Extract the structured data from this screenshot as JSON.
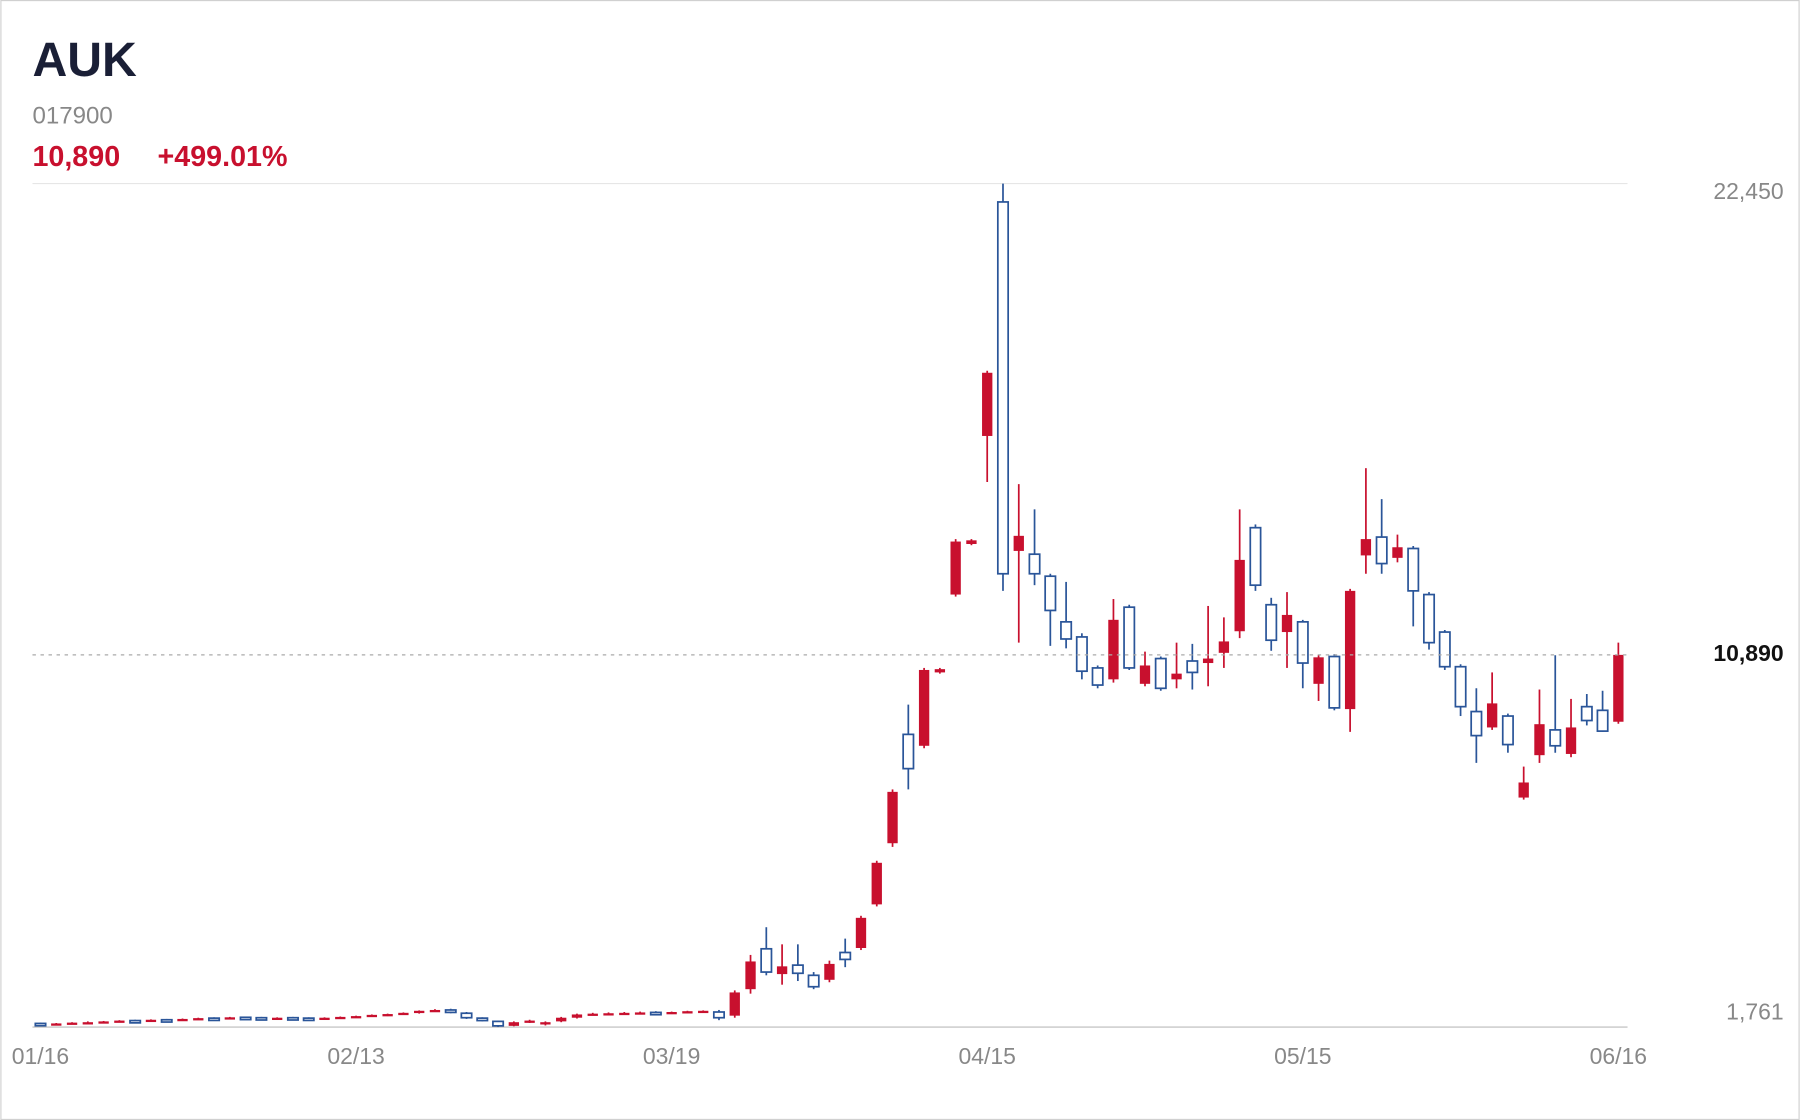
{
  "chart_data": {
    "type": "candlestick",
    "title": "AUK",
    "subtitle": "017900",
    "price": "10,890",
    "change": "+499.01%",
    "up_color": "#c8102e",
    "down_color": "#2a5599",
    "ylim": [
      1761,
      22450
    ],
    "yticks": [
      {
        "value": 1761,
        "label": "1,761"
      },
      {
        "value": 22450,
        "label": "22,450"
      }
    ],
    "categories": [
      "01/16",
      null,
      null,
      null,
      null,
      null,
      null,
      null,
      null,
      null,
      null,
      null,
      null,
      null,
      null,
      null,
      null,
      null,
      null,
      null,
      "02/13",
      null,
      null,
      null,
      null,
      null,
      null,
      null,
      null,
      null,
      null,
      null,
      null,
      null,
      null,
      null,
      null,
      null,
      null,
      null,
      "03/19",
      null,
      null,
      null,
      null,
      null,
      null,
      null,
      null,
      null,
      null,
      null,
      null,
      null,
      null,
      null,
      null,
      null,
      null,
      null,
      "04/15",
      null,
      null,
      null,
      null,
      null,
      null,
      null,
      null,
      null,
      null,
      null,
      null,
      null,
      null,
      null,
      null,
      null,
      null,
      null,
      "05/15",
      null,
      null,
      null,
      null,
      null,
      null,
      null,
      null,
      null,
      null,
      null,
      null,
      null,
      null,
      null,
      null,
      null,
      null,
      null,
      "06/16"
    ],
    "open": [
      1850,
      1820,
      1850,
      1870,
      1880,
      1900,
      1920,
      1910,
      1940,
      1930,
      1960,
      1980,
      1970,
      2000,
      1990,
      1970,
      1990,
      1980,
      1960,
      1990,
      2010,
      2030,
      2060,
      2080,
      2110,
      2160,
      2180,
      2100,
      1980,
      1900,
      1790,
      1880,
      1840,
      1900,
      1990,
      2070,
      2090,
      2100,
      2110,
      2120,
      2100,
      2130,
      2150,
      2130,
      2040,
      2690,
      3680,
      3060,
      3280,
      3030,
      2920,
      3590,
      3700,
      4770,
      6270,
      8940,
      8660,
      10460,
      12370,
      13610,
      16260,
      22000,
      13440,
      13360,
      12820,
      11700,
      11330,
      10570,
      10290,
      12060,
      10180,
      10800,
      10290,
      10740,
      10690,
      10940,
      11470,
      14010,
      12120,
      11450,
      11700,
      10180,
      10850,
      9560,
      13330,
      13780,
      13270,
      13500,
      12370,
      11450,
      10600,
      9500,
      9110,
      9390,
      7390,
      8430,
      9050,
      8460,
      9620,
      9530,
      9250
    ],
    "high": [
      1870,
      1860,
      1880,
      1900,
      1910,
      1930,
      1940,
      1950,
      1960,
      1970,
      1990,
      2000,
      2010,
      2020,
      2010,
      2000,
      2010,
      2000,
      2000,
      2020,
      2040,
      2070,
      2090,
      2120,
      2170,
      2200,
      2210,
      2130,
      2000,
      1920,
      1900,
      1940,
      1900,
      2010,
      2090,
      2110,
      2120,
      2130,
      2140,
      2150,
      2140,
      2160,
      2170,
      2180,
      2660,
      3530,
      4210,
      3790,
      3790,
      3110,
      3390,
      3930,
      4490,
      5840,
      7590,
      9670,
      10570,
      10570,
      13730,
      13730,
      17860,
      22450,
      15080,
      14460,
      12880,
      12680,
      11420,
      10630,
      12260,
      12120,
      10970,
      10850,
      11190,
      11160,
      12090,
      11810,
      14460,
      14090,
      12290,
      12430,
      11750,
      10880,
      10910,
      12510,
      15470,
      14710,
      13840,
      13560,
      12430,
      11500,
      10660,
      10070,
      10460,
      9450,
      8150,
      10040,
      10880,
      9810,
      9930,
      10010,
      11190
    ],
    "low": [
      1800,
      1810,
      1830,
      1850,
      1860,
      1880,
      1890,
      1900,
      1910,
      1920,
      1940,
      1950,
      1960,
      1970,
      1960,
      1950,
      1970,
      1950,
      1950,
      1970,
      1990,
      2010,
      2030,
      2060,
      2090,
      2130,
      2100,
      1960,
      1900,
      1761,
      1780,
      1860,
      1800,
      1880,
      1970,
      2050,
      2060,
      2070,
      2080,
      2080,
      2080,
      2100,
      2120,
      1930,
      1990,
      2580,
      3030,
      2800,
      2890,
      2690,
      2860,
      3230,
      3650,
      4720,
      6180,
      7590,
      8600,
      10430,
      12320,
      13580,
      15130,
      12460,
      11190,
      12600,
      11110,
      11050,
      10290,
      10070,
      10210,
      10520,
      10120,
      10010,
      10070,
      10040,
      10120,
      10570,
      11300,
      12460,
      10990,
      10570,
      10070,
      9760,
      9530,
      9000,
      12880,
      12880,
      13160,
      11590,
      11020,
      10520,
      9390,
      8240,
      9050,
      8490,
      7340,
      8240,
      8490,
      8380,
      9160,
      9000,
      9200
    ],
    "close": [
      1820,
      1850,
      1870,
      1880,
      1900,
      1920,
      1910,
      1940,
      1930,
      1960,
      1980,
      1970,
      2000,
      1990,
      1970,
      1990,
      1980,
      1960,
      1990,
      2010,
      2030,
      2060,
      2080,
      2110,
      2160,
      2180,
      2120,
      1990,
      1920,
      1790,
      1880,
      1920,
      1880,
      1990,
      2070,
      2090,
      2100,
      2110,
      2120,
      2100,
      2130,
      2150,
      2160,
      1990,
      2610,
      3370,
      3110,
      3250,
      3080,
      2750,
      3310,
      3420,
      4440,
      5790,
      7530,
      8100,
      10520,
      10540,
      13670,
      13700,
      17810,
      12880,
      13810,
      12880,
      11980,
      11280,
      10490,
      10150,
      11750,
      10570,
      10630,
      10070,
      10430,
      10460,
      10800,
      11220,
      13220,
      12600,
      11250,
      11870,
      10690,
      10830,
      9590,
      12460,
      13730,
      13130,
      13530,
      12460,
      11190,
      10600,
      9620,
      8910,
      9700,
      8690,
      7760,
      9190,
      8660,
      9110,
      9280,
      9020,
      10890
    ]
  }
}
